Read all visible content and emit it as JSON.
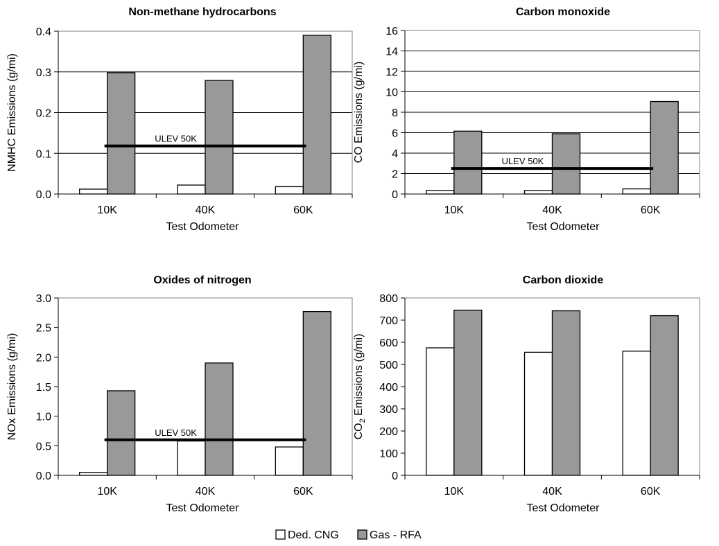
{
  "legend": [
    {
      "name": "Ded. CNG",
      "color": "#ffffff"
    },
    {
      "name": "Gas - RFA",
      "color": "#999999"
    }
  ],
  "chart_data": [
    {
      "type": "bar",
      "title": "Non-methane hydrocarbons",
      "xlabel": "Test Odometer",
      "ylabel": "NMHC Emissions (g/mi)",
      "categories": [
        "10K",
        "40K",
        "60K"
      ],
      "ylim": [
        0,
        0.4
      ],
      "yticks": [
        "0.0",
        "0.1",
        "0.2",
        "0.3",
        "0.4"
      ],
      "grid": true,
      "series": [
        {
          "name": "Ded. CNG",
          "values": [
            0.012,
            0.022,
            0.018
          ]
        },
        {
          "name": "Gas - RFA",
          "values": [
            0.298,
            0.279,
            0.39
          ]
        }
      ],
      "reference_line": {
        "label": "ULEV 50K",
        "value": 0.118
      }
    },
    {
      "type": "bar",
      "title": "Carbon monoxide",
      "xlabel": "Test Odometer",
      "ylabel": "CO Emissions (g/mi)",
      "categories": [
        "10K",
        "40K",
        "60K"
      ],
      "ylim": [
        0,
        16
      ],
      "yticks": [
        "0",
        "2",
        "4",
        "6",
        "8",
        "10",
        "12",
        "14",
        "16"
      ],
      "grid": true,
      "series": [
        {
          "name": "Ded. CNG",
          "values": [
            0.35,
            0.35,
            0.5
          ]
        },
        {
          "name": "Gas - RFA",
          "values": [
            6.15,
            5.9,
            9.05
          ]
        }
      ],
      "reference_line": {
        "label": "ULEV 50K",
        "value": 2.5
      }
    },
    {
      "type": "bar",
      "title": "Oxides of nitrogen",
      "xlabel": "Test Odometer",
      "ylabel": "NOx Emissions (g/mi)",
      "categories": [
        "10K",
        "40K",
        "60K"
      ],
      "ylim": [
        0,
        3.0
      ],
      "yticks": [
        "0.0",
        "0.5",
        "1.0",
        "1.5",
        "2.0",
        "2.5",
        "3.0"
      ],
      "grid": false,
      "series": [
        {
          "name": "Ded. CNG",
          "values": [
            0.05,
            0.58,
            0.48
          ]
        },
        {
          "name": "Gas - RFA",
          "values": [
            1.43,
            1.9,
            2.77
          ]
        }
      ],
      "reference_line": {
        "label": "ULEV 50K",
        "value": 0.6
      }
    },
    {
      "type": "bar",
      "title": "Carbon dioxide",
      "xlabel": "Test Odometer",
      "ylabel": "CO₂ Emissions (g/mi)",
      "categories": [
        "10K",
        "40K",
        "60K"
      ],
      "ylim": [
        0,
        800
      ],
      "yticks": [
        "0",
        "100",
        "200",
        "300",
        "400",
        "500",
        "600",
        "700",
        "800"
      ],
      "grid": false,
      "series": [
        {
          "name": "Ded. CNG",
          "values": [
            575,
            555,
            560
          ]
        },
        {
          "name": "Gas - RFA",
          "values": [
            745,
            742,
            720
          ]
        }
      ]
    }
  ]
}
